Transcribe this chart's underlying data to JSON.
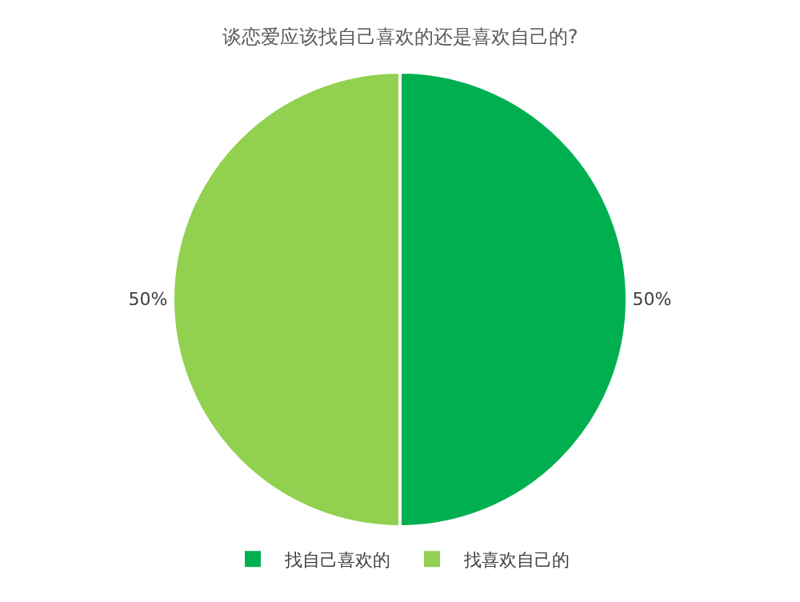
{
  "chart_data": {
    "type": "pie",
    "title": "谈恋爱应该找自己喜欢的还是喜欢自己的?",
    "categories": [
      "找自己喜欢的",
      "找喜欢自己的"
    ],
    "values": [
      50,
      50
    ],
    "value_labels": [
      "50%",
      "50%"
    ],
    "colors": [
      "#00b050",
      "#92d050"
    ],
    "legend": "bottom"
  }
}
